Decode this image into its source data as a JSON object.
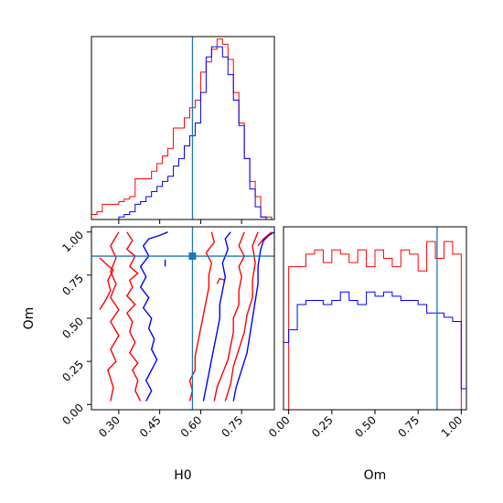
{
  "chart_data": {
    "type": "corner",
    "parameters": [
      "H0",
      "Om"
    ],
    "series": [
      {
        "name": "",
        "color": "#ff0000"
      },
      {
        "name": "",
        "color": "#0000ff"
      }
    ],
    "truth": {
      "H0": 0.57,
      "Om": 0.86,
      "color": "#1f77b4"
    },
    "panels": {
      "H0_hist": {
        "type": "histogram",
        "xlim": [
          0.2,
          0.87
        ],
        "ticks": [
          0.3,
          0.45,
          0.6,
          0.75
        ],
        "bin_edges": [
          0.2,
          0.22,
          0.24,
          0.26,
          0.28,
          0.3,
          0.32,
          0.34,
          0.36,
          0.38,
          0.4,
          0.42,
          0.44,
          0.46,
          0.48,
          0.5,
          0.52,
          0.54,
          0.56,
          0.58,
          0.6,
          0.62,
          0.64,
          0.66,
          0.68,
          0.7,
          0.72,
          0.74,
          0.76,
          0.78,
          0.8,
          0.82,
          0.84,
          0.86
        ],
        "red": [
          0.02,
          0.03,
          0.06,
          0.06,
          0.06,
          0.07,
          0.08,
          0.09,
          0.16,
          0.16,
          0.16,
          0.19,
          0.22,
          0.25,
          0.28,
          0.36,
          0.36,
          0.4,
          0.44,
          0.47,
          0.58,
          0.62,
          0.67,
          0.71,
          0.69,
          0.63,
          0.5,
          0.38,
          0.24,
          0.15,
          0.09,
          0.01,
          0.01
        ],
        "blue": [
          0.0,
          0.0,
          0.0,
          0.0,
          0.0,
          0.01,
          0.02,
          0.03,
          0.06,
          0.07,
          0.09,
          0.11,
          0.13,
          0.15,
          0.17,
          0.21,
          0.24,
          0.29,
          0.33,
          0.38,
          0.5,
          0.64,
          0.68,
          0.68,
          0.64,
          0.57,
          0.47,
          0.37,
          0.24,
          0.12,
          0.05,
          0.01,
          0.0
        ]
      },
      "Om_hist": {
        "type": "histogram",
        "xlim": [
          -0.03,
          1.03
        ],
        "ticks": [
          0.0,
          0.25,
          0.5,
          0.75,
          1.0
        ],
        "bin_edges": [
          0.0,
          0.05,
          0.1,
          0.15,
          0.2,
          0.25,
          0.3,
          0.35,
          0.4,
          0.45,
          0.5,
          0.55,
          0.6,
          0.65,
          0.7,
          0.75,
          0.8,
          0.85,
          0.9,
          0.95,
          1.0
        ],
        "red": [
          0.34,
          0.34,
          0.37,
          0.38,
          0.35,
          0.38,
          0.37,
          0.35,
          0.38,
          0.34,
          0.38,
          0.36,
          0.34,
          0.38,
          0.37,
          0.33,
          0.4,
          0.36,
          0.4,
          0.37
        ],
        "blue": [
          0.19,
          0.25,
          0.26,
          0.26,
          0.25,
          0.26,
          0.28,
          0.26,
          0.25,
          0.28,
          0.27,
          0.28,
          0.27,
          0.26,
          0.26,
          0.25,
          0.23,
          0.23,
          0.22,
          0.21
        ],
        "blue_extra": [
          [
            0.0,
            0.16
          ],
          [
            1.0,
            0.05
          ]
        ]
      },
      "joint": {
        "type": "contour",
        "xlim": [
          0.2,
          0.87
        ],
        "ylim": [
          -0.03,
          1.03
        ],
        "xticks": [
          0.3,
          0.45,
          0.6,
          0.75
        ],
        "yticks": [
          0.0,
          0.25,
          0.5,
          0.75,
          1.0
        ],
        "red_contours": [
          [
            [
              0.27,
              0.02
            ],
            [
              0.28,
              0.1
            ],
            [
              0.26,
              0.2
            ],
            [
              0.29,
              0.25
            ],
            [
              0.27,
              0.32
            ],
            [
              0.3,
              0.4
            ],
            [
              0.27,
              0.48
            ],
            [
              0.3,
              0.55
            ],
            [
              0.27,
              0.62
            ],
            [
              0.29,
              0.7
            ],
            [
              0.27,
              0.77
            ],
            [
              0.29,
              0.85
            ],
            [
              0.27,
              0.92
            ],
            [
              0.3,
              1.0
            ]
          ],
          [
            [
              0.38,
              0.02
            ],
            [
              0.36,
              0.08
            ],
            [
              0.37,
              0.14
            ],
            [
              0.35,
              0.2
            ],
            [
              0.37,
              0.24
            ],
            [
              0.34,
              0.3
            ],
            [
              0.36,
              0.36
            ],
            [
              0.34,
              0.42
            ],
            [
              0.35,
              0.48
            ],
            [
              0.33,
              0.53
            ],
            [
              0.36,
              0.58
            ],
            [
              0.33,
              0.63
            ],
            [
              0.35,
              0.68
            ],
            [
              0.34,
              0.72
            ],
            [
              0.37,
              0.76
            ],
            [
              0.34,
              0.8
            ],
            [
              0.36,
              0.86
            ],
            [
              0.33,
              0.9
            ],
            [
              0.35,
              0.95
            ],
            [
              0.33,
              1.0
            ]
          ],
          [
            [
              0.23,
              0.55
            ],
            [
              0.25,
              0.6
            ],
            [
              0.27,
              0.66
            ],
            [
              0.26,
              0.72
            ],
            [
              0.28,
              0.78
            ],
            [
              0.25,
              0.82
            ],
            [
              0.23,
              0.85
            ]
          ],
          [
            [
              0.56,
              0.02
            ],
            [
              0.57,
              0.08
            ],
            [
              0.56,
              0.14
            ],
            [
              0.58,
              0.2
            ],
            [
              0.58,
              0.28
            ],
            [
              0.59,
              0.36
            ],
            [
              0.6,
              0.44
            ],
            [
              0.61,
              0.52
            ],
            [
              0.62,
              0.6
            ],
            [
              0.63,
              0.68
            ],
            [
              0.63,
              0.75
            ],
            [
              0.64,
              0.82
            ],
            [
              0.62,
              0.88
            ],
            [
              0.65,
              0.94
            ],
            [
              0.64,
              1.0
            ]
          ],
          [
            [
              0.65,
              0.02
            ],
            [
              0.66,
              0.1
            ],
            [
              0.68,
              0.18
            ],
            [
              0.7,
              0.26
            ],
            [
              0.71,
              0.34
            ],
            [
              0.72,
              0.42
            ],
            [
              0.72,
              0.5
            ],
            [
              0.74,
              0.58
            ],
            [
              0.74,
              0.66
            ],
            [
              0.75,
              0.74
            ],
            [
              0.74,
              0.8
            ],
            [
              0.76,
              0.86
            ],
            [
              0.74,
              0.92
            ],
            [
              0.76,
              1.0
            ]
          ],
          [
            [
              0.69,
              0.02
            ],
            [
              0.71,
              0.12
            ],
            [
              0.72,
              0.22
            ],
            [
              0.74,
              0.32
            ],
            [
              0.76,
              0.42
            ],
            [
              0.77,
              0.52
            ],
            [
              0.79,
              0.62
            ],
            [
              0.79,
              0.72
            ],
            [
              0.8,
              0.82
            ],
            [
              0.79,
              0.92
            ],
            [
              0.81,
              1.0
            ]
          ],
          [
            [
              0.81,
              0.92
            ],
            [
              0.83,
              0.96
            ],
            [
              0.86,
              1.0
            ]
          ],
          [
            [
              0.66,
              0.7
            ],
            [
              0.67,
              0.73
            ],
            [
              0.69,
              0.72
            ]
          ]
        ],
        "blue_contours": [
          [
            [
              0.4,
              0.02
            ],
            [
              0.42,
              0.08
            ],
            [
              0.4,
              0.14
            ],
            [
              0.42,
              0.2
            ],
            [
              0.44,
              0.26
            ],
            [
              0.42,
              0.32
            ],
            [
              0.43,
              0.38
            ],
            [
              0.41,
              0.44
            ],
            [
              0.42,
              0.5
            ],
            [
              0.39,
              0.56
            ],
            [
              0.41,
              0.62
            ],
            [
              0.38,
              0.68
            ],
            [
              0.4,
              0.74
            ],
            [
              0.38,
              0.8
            ],
            [
              0.41,
              0.86
            ],
            [
              0.39,
              0.92
            ],
            [
              0.41,
              0.96
            ],
            [
              0.45,
              0.98
            ],
            [
              0.48,
              1.0
            ]
          ],
          [
            [
              0.61,
              0.02
            ],
            [
              0.62,
              0.1
            ],
            [
              0.63,
              0.18
            ],
            [
              0.64,
              0.26
            ],
            [
              0.65,
              0.34
            ],
            [
              0.66,
              0.42
            ],
            [
              0.67,
              0.5
            ],
            [
              0.67,
              0.58
            ],
            [
              0.68,
              0.66
            ],
            [
              0.69,
              0.74
            ],
            [
              0.68,
              0.82
            ],
            [
              0.7,
              0.9
            ],
            [
              0.69,
              0.96
            ],
            [
              0.71,
              1.0
            ]
          ],
          [
            [
              0.72,
              0.02
            ],
            [
              0.73,
              0.1
            ],
            [
              0.75,
              0.2
            ],
            [
              0.77,
              0.3
            ],
            [
              0.78,
              0.4
            ],
            [
              0.79,
              0.5
            ],
            [
              0.8,
              0.6
            ],
            [
              0.81,
              0.7
            ],
            [
              0.81,
              0.8
            ],
            [
              0.82,
              0.9
            ],
            [
              0.83,
              0.95
            ],
            [
              0.85,
              0.98
            ],
            [
              0.87,
              1.0
            ]
          ],
          [
            [
              0.47,
              0.8
            ],
            [
              0.47,
              0.84
            ]
          ]
        ]
      }
    },
    "xlabels": [
      "H0",
      "Om"
    ],
    "ylabels": [
      "",
      "Om"
    ]
  }
}
